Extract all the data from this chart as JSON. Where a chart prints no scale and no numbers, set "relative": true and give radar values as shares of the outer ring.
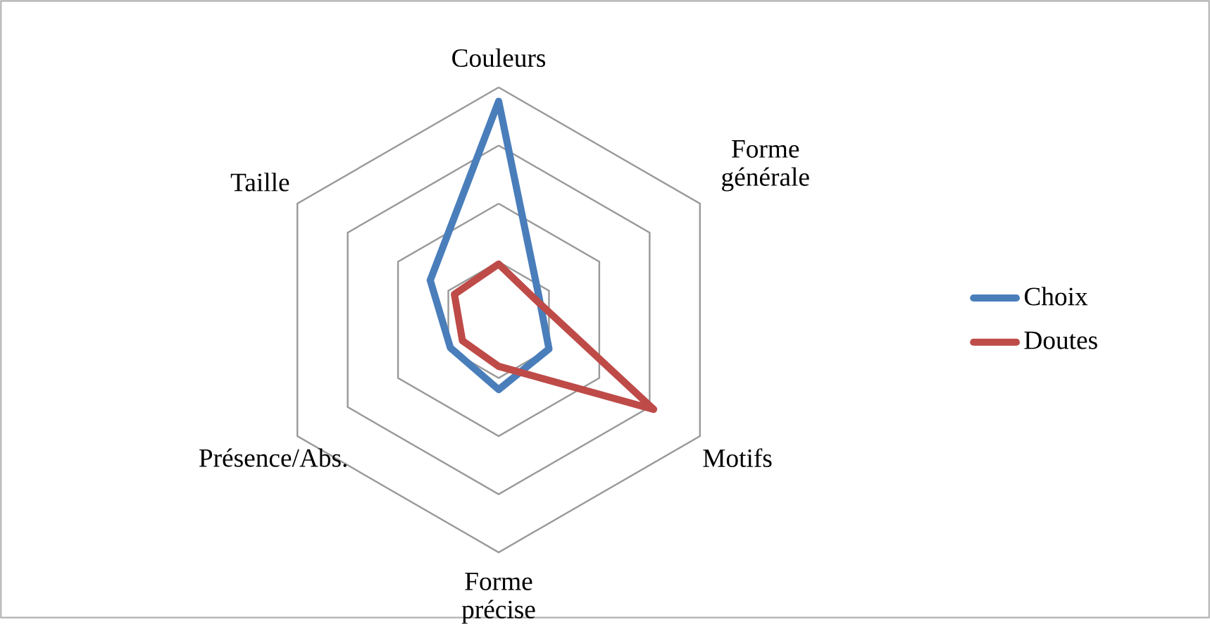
{
  "chart_data": {
    "type": "radar",
    "relative": true,
    "grid": true,
    "legend": "right",
    "categories": [
      "Couleurs",
      "Forme générale",
      "Motifs",
      "Forme précise",
      "Présence/Abs.",
      "Taille"
    ],
    "series": [
      {
        "name": "Choix",
        "color": "#4a7ebb",
        "values": [
          0.94,
          0.2,
          0.25,
          0.3,
          0.24,
          0.34
        ]
      },
      {
        "name": "Doutes",
        "color": "#be4b48",
        "values": [
          0.24,
          0.18,
          0.77,
          0.2,
          0.18,
          0.22
        ]
      }
    ]
  }
}
